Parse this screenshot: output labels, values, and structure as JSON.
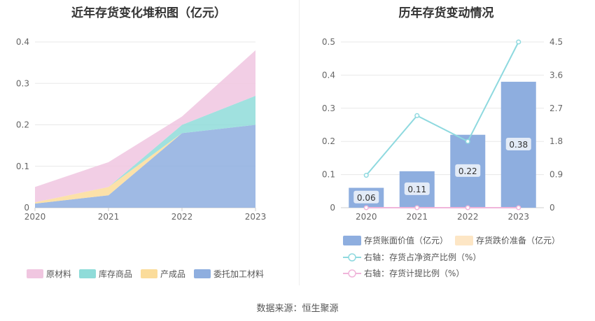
{
  "chart_data": [
    {
      "type": "area",
      "stacked": true,
      "title": "近年存货变化堆积图（亿元）",
      "categories": [
        "2020",
        "2021",
        "2022",
        "2023"
      ],
      "ylim": [
        0,
        0.4
      ],
      "yticks": [
        "0",
        "0.1",
        "0.2",
        "0.3",
        "0.4"
      ],
      "grid": true,
      "legend_position": "bottom",
      "series": [
        {
          "name": "委托加工材料",
          "color": "#8eaedf",
          "values": [
            0.01,
            0.03,
            0.18,
            0.2
          ]
        },
        {
          "name": "产成品",
          "color": "#fbdc9a",
          "values": [
            0.003,
            0.02,
            0.0,
            0.0
          ]
        },
        {
          "name": "库存商品",
          "color": "#8fdcd9",
          "values": [
            0.0,
            0.0,
            0.02,
            0.07
          ]
        },
        {
          "name": "原材料",
          "color": "#f0c6e0",
          "values": [
            0.037,
            0.06,
            0.02,
            0.11
          ]
        }
      ],
      "legend_order": [
        "原材料",
        "库存商品",
        "产成品",
        "委托加工材料"
      ]
    },
    {
      "type": "bar",
      "title": "历年存货变动情况",
      "categories": [
        "2020",
        "2021",
        "2022",
        "2023"
      ],
      "ylim": [
        0,
        0.5
      ],
      "yticks": [
        "0",
        "0.1",
        "0.2",
        "0.3",
        "0.4",
        "0.5"
      ],
      "y2lim": [
        0,
        4.5
      ],
      "y2ticks": [
        "0",
        "0.9",
        "1.8",
        "2.7",
        "3.6",
        "4.5"
      ],
      "grid": true,
      "legend_position": "bottom",
      "series": [
        {
          "name": "存货账面价值（亿元）",
          "type": "bar",
          "color": "#8eaedf",
          "values": [
            0.06,
            0.11,
            0.22,
            0.38
          ],
          "labels": [
            "0.06",
            "0.11",
            "0.22",
            "0.38"
          ]
        },
        {
          "name": "存货跌价准备（亿元）",
          "type": "bar",
          "color": "#fde6c5",
          "values": [
            0,
            0,
            0,
            0
          ]
        },
        {
          "name": "右轴：存货占净资产比例（%）",
          "type": "line",
          "axis": "right",
          "color": "#8ed9df",
          "values": [
            0.88,
            2.5,
            1.8,
            4.5
          ]
        },
        {
          "name": "右轴：存货计提比例（%）",
          "type": "line",
          "axis": "right",
          "color": "#f0b5da",
          "values": [
            0,
            0,
            0,
            0
          ]
        }
      ]
    }
  ],
  "source": "数据来源：恒生聚源"
}
